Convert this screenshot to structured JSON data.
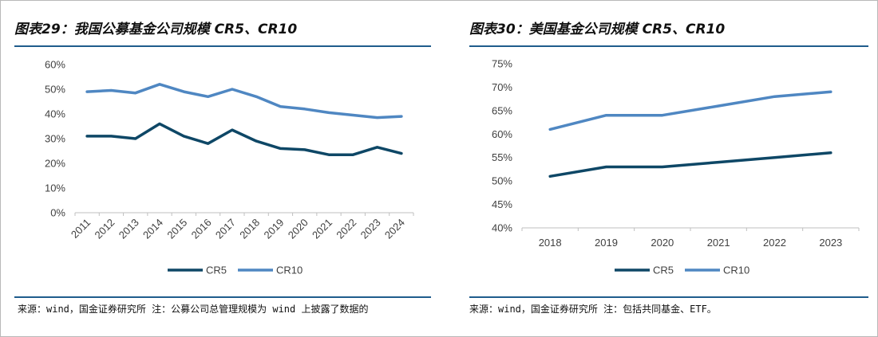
{
  "colors": {
    "cr5": "#0e4766",
    "cr10": "#4f87c2",
    "rule": "#1f5c8c"
  },
  "chart_data": [
    {
      "type": "line",
      "title": "图表29：我国公募基金公司规模 CR5、CR10",
      "source": "来源：wind，国金证券研究所 注：公募公司总管理规模为 wind 上披露了数据的",
      "categories": [
        "2011",
        "2012",
        "2013",
        "2014",
        "2015",
        "2016",
        "2017",
        "2018",
        "2019",
        "2020",
        "2021",
        "2022",
        "2023",
        "2024"
      ],
      "series": [
        {
          "name": "CR5",
          "values": [
            0.31,
            0.31,
            0.3,
            0.36,
            0.31,
            0.28,
            0.335,
            0.29,
            0.26,
            0.255,
            0.235,
            0.235,
            0.265,
            0.24
          ]
        },
        {
          "name": "CR10",
          "values": [
            0.49,
            0.495,
            0.485,
            0.52,
            0.49,
            0.47,
            0.5,
            0.47,
            0.43,
            0.42,
            0.405,
            0.395,
            0.385,
            0.39
          ]
        }
      ],
      "ylim": [
        0,
        0.6
      ],
      "yticks": [
        "0%",
        "10%",
        "20%",
        "30%",
        "40%",
        "50%",
        "60%"
      ],
      "xlabel": "",
      "ylabel": "",
      "grid": false,
      "legend": "bottom"
    },
    {
      "type": "line",
      "title": "图表30：美国基金公司规模 CR5、CR10",
      "source": "来源：wind，国金证券研究所 注：包括共同基金、ETF。",
      "categories": [
        "2018",
        "2019",
        "2020",
        "2021",
        "2022",
        "2023"
      ],
      "series": [
        {
          "name": "CR5",
          "values": [
            0.51,
            0.53,
            0.53,
            0.54,
            0.55,
            0.56
          ]
        },
        {
          "name": "CR10",
          "values": [
            0.61,
            0.64,
            0.64,
            0.66,
            0.68,
            0.69
          ]
        }
      ],
      "ylim": [
        0.4,
        0.75
      ],
      "yticks": [
        "40%",
        "45%",
        "50%",
        "55%",
        "60%",
        "65%",
        "70%",
        "75%"
      ],
      "xlabel": "",
      "ylabel": "",
      "grid": false,
      "legend": "bottom"
    }
  ]
}
